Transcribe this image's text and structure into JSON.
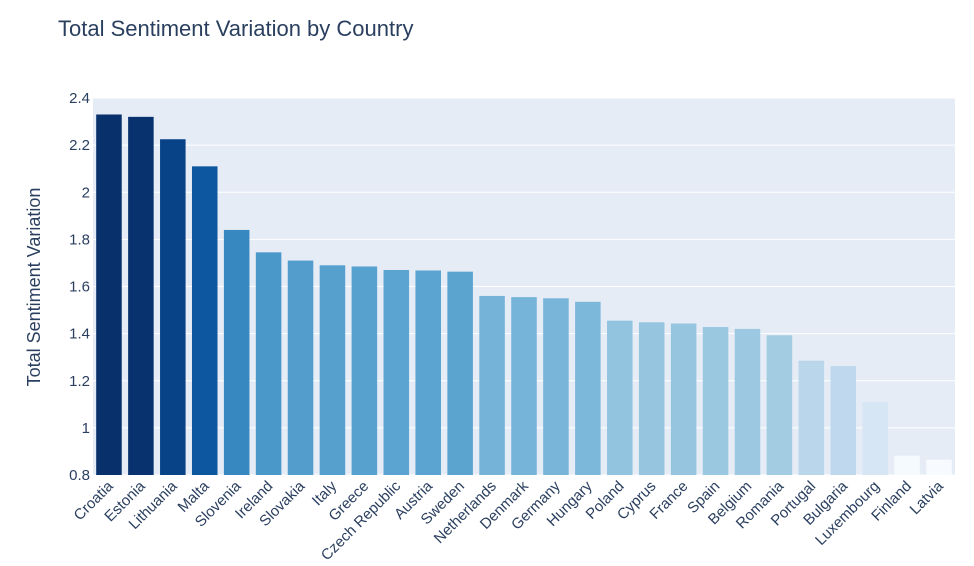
{
  "chart_data": {
    "type": "bar",
    "title": "Total Sentiment Variation by Country",
    "xlabel": "",
    "ylabel": "Total Sentiment Variation",
    "ylim": [
      0.8,
      2.4
    ],
    "yticks": [
      "0.8",
      "1",
      "1.2",
      "1.4",
      "1.6",
      "1.8",
      "2",
      "2.2",
      "2.4"
    ],
    "grid": true,
    "colorscale": "Blues (darker = higher value)",
    "categories": [
      "Croatia",
      "Estonia",
      "Lithuania",
      "Malta",
      "Slovenia",
      "Ireland",
      "Slovakia",
      "Italy",
      "Greece",
      "Czech Republic",
      "Austria",
      "Sweden",
      "Netherlands",
      "Denmark",
      "Germany",
      "Hungary",
      "Poland",
      "Cyprus",
      "France",
      "Spain",
      "Belgium",
      "Romania",
      "Portugal",
      "Bulgaria",
      "Luxembourg",
      "Finland",
      "Latvia"
    ],
    "values": [
      2.33,
      2.32,
      2.225,
      2.11,
      1.84,
      1.745,
      1.71,
      1.69,
      1.685,
      1.67,
      1.668,
      1.663,
      1.56,
      1.555,
      1.55,
      1.535,
      1.455,
      1.448,
      1.443,
      1.428,
      1.42,
      1.393,
      1.285,
      1.262,
      1.11,
      0.882,
      0.865
    ]
  }
}
